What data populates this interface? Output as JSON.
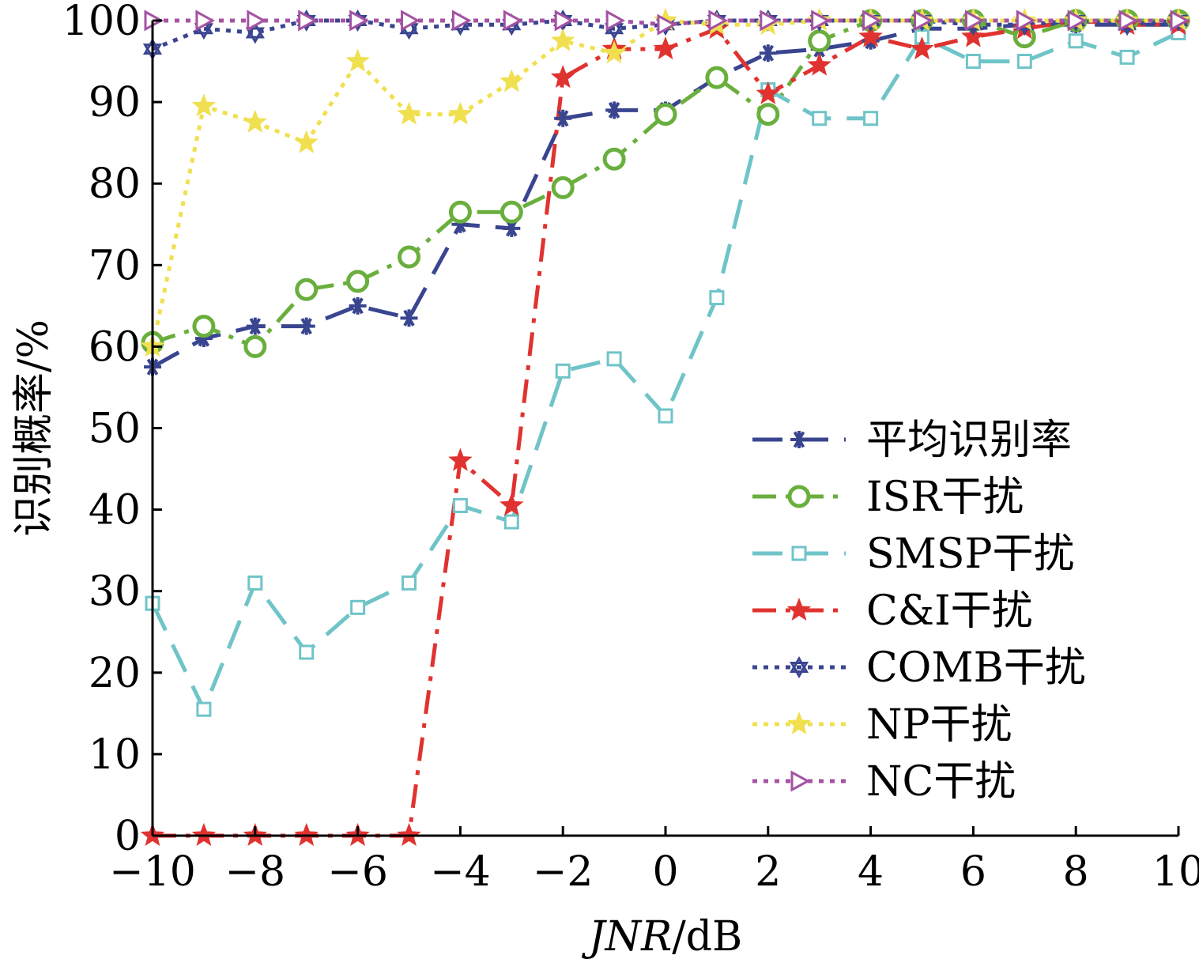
{
  "chart_data": {
    "type": "line",
    "title": "",
    "xlabel": "JNR/dB",
    "xlabel_italic": "JNR",
    "xlabel_unit": "/dB",
    "ylabel": "识别概率/%",
    "xlim": [
      -10,
      10
    ],
    "ylim": [
      0,
      100
    ],
    "xticks": [
      -10,
      -8,
      -6,
      -4,
      -2,
      0,
      2,
      4,
      6,
      8,
      10
    ],
    "yticks": [
      0,
      10,
      20,
      30,
      40,
      50,
      60,
      70,
      80,
      90,
      100
    ],
    "xtick_labels": [
      "−10",
      "−8",
      "−6",
      "−4",
      "−2",
      "0",
      "2",
      "4",
      "6",
      "8",
      "10"
    ],
    "ytick_labels": [
      "0",
      "10",
      "20",
      "30",
      "40",
      "50",
      "60",
      "70",
      "80",
      "90",
      "100"
    ],
    "grid": false,
    "legend_position": "lower-right",
    "x": [
      -10,
      -9,
      -8,
      -7,
      -6,
      -5,
      -4,
      -3,
      -2,
      -1,
      0,
      1,
      2,
      3,
      4,
      5,
      6,
      7,
      8,
      9,
      10
    ],
    "series": [
      {
        "name": "平均识别率",
        "color": "#3a4590",
        "dash": "dashed",
        "marker": "asterisk",
        "values": [
          57.5,
          61,
          62.5,
          62.5,
          65,
          63.5,
          75,
          74.5,
          88,
          89,
          89,
          93,
          96,
          96.5,
          97.5,
          99,
          99,
          99.5,
          99.5,
          99.5,
          99.5
        ]
      },
      {
        "name": "ISR干扰",
        "color": "#6aaf3d",
        "dash": "dashdot",
        "marker": "circle",
        "values": [
          60.5,
          62.5,
          60,
          67,
          68,
          71,
          76.5,
          76.5,
          79.5,
          83,
          88.5,
          93,
          88.5,
          97.5,
          100,
          100,
          100,
          98,
          100,
          100,
          100
        ]
      },
      {
        "name": "SMSP干扰",
        "color": "#6fc4c8",
        "dash": "dashed",
        "marker": "square",
        "values": [
          28.5,
          15.5,
          31,
          22.5,
          28,
          31,
          40.5,
          38.5,
          57,
          58.5,
          51.5,
          66,
          91.5,
          88,
          88,
          98,
          95,
          95,
          97.5,
          95.5,
          98.5
        ]
      },
      {
        "name": "C&I干扰",
        "color": "#e03330",
        "dash": "dashdot",
        "marker": "star",
        "values": [
          0,
          0,
          0,
          0,
          0,
          0,
          46,
          40.5,
          93,
          96.5,
          96.5,
          99,
          91,
          94.5,
          98,
          96.5,
          98,
          99,
          100,
          99.5,
          99.5
        ]
      },
      {
        "name": "COMB干扰",
        "color": "#3a4590",
        "dash": "dotted",
        "marker": "hexagram",
        "values": [
          96.5,
          99,
          98.5,
          100,
          100,
          99,
          99.5,
          99.5,
          100,
          99,
          99.5,
          100,
          100,
          100,
          100,
          100,
          99.5,
          99.5,
          100,
          99.5,
          100
        ]
      },
      {
        "name": "NP干扰",
        "color": "#f0e050",
        "dash": "dotted",
        "marker": "star",
        "values": [
          60,
          89.5,
          87.5,
          85,
          95,
          88.5,
          88.5,
          92.5,
          97.5,
          96,
          100,
          99.5,
          99.5,
          100,
          100,
          100,
          100,
          100,
          100,
          100,
          100
        ]
      },
      {
        "name": "NC干扰",
        "color": "#a552a3",
        "dash": "dotted",
        "marker": "triangle-right",
        "values": [
          100,
          100,
          100,
          100,
          100,
          100,
          100,
          100,
          100,
          100,
          99.5,
          100,
          100,
          100,
          100,
          100,
          100,
          100,
          100,
          100,
          100
        ]
      }
    ]
  }
}
